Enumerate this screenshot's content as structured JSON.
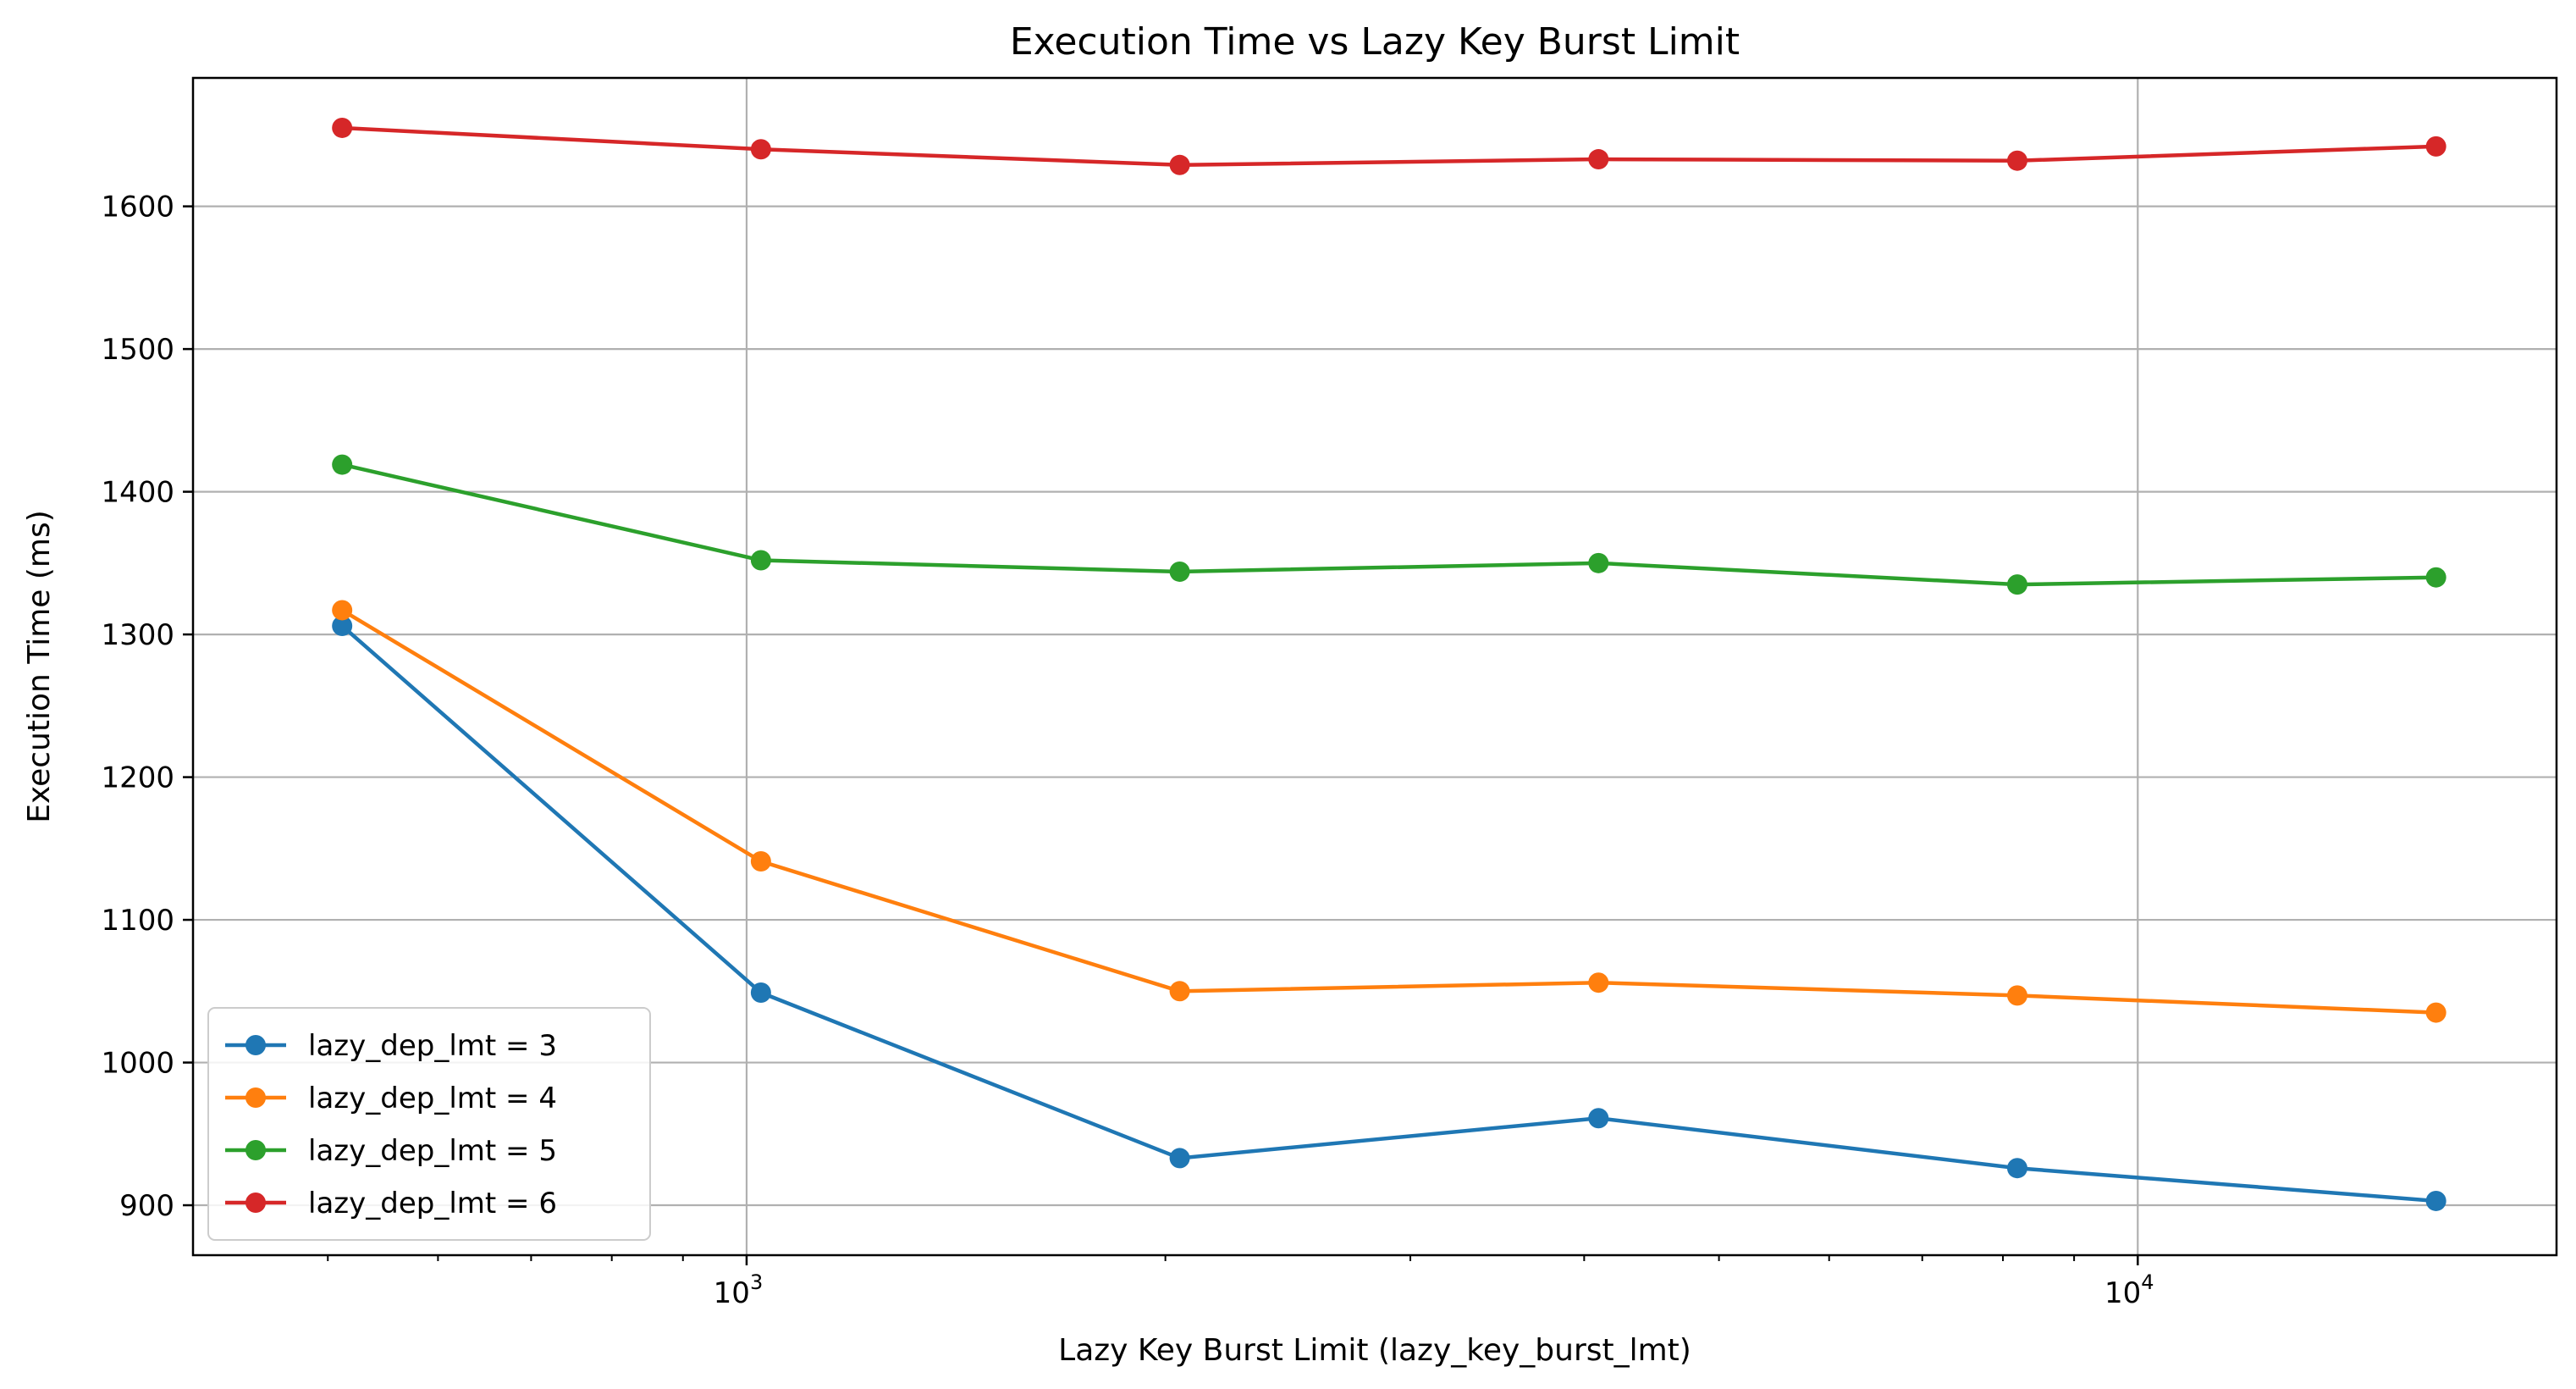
{
  "chart_data": {
    "type": "line",
    "title": "Execution Time vs Lazy Key Burst Limit",
    "xlabel": "Lazy Key Burst Limit (lazy_key_burst_lmt)",
    "ylabel": "Execution Time (ms)",
    "x_scale": "log",
    "x": [
      512,
      1024,
      2048,
      4096,
      8192,
      16384
    ],
    "x_major_ticks": [
      {
        "value": 1000,
        "label_base": "10",
        "label_exp": "3"
      },
      {
        "value": 10000,
        "label_base": "10",
        "label_exp": "4"
      }
    ],
    "xlim": [
      400,
      20000
    ],
    "ylim": [
      865,
      1690
    ],
    "y_ticks": [
      900,
      1000,
      1100,
      1200,
      1300,
      1400,
      1500,
      1600
    ],
    "grid": true,
    "legend_position": "lower-left",
    "series": [
      {
        "name": "lazy_dep_lmt = 3",
        "color": "#1f77b4",
        "values": [
          1306,
          1049,
          933,
          961,
          926,
          903
        ]
      },
      {
        "name": "lazy_dep_lmt = 4",
        "color": "#ff7f0e",
        "values": [
          1317,
          1141,
          1050,
          1056,
          1047,
          1035
        ]
      },
      {
        "name": "lazy_dep_lmt = 5",
        "color": "#2ca02c",
        "values": [
          1419,
          1352,
          1344,
          1350,
          1335,
          1340
        ]
      },
      {
        "name": "lazy_dep_lmt = 6",
        "color": "#d62728",
        "values": [
          1655,
          1640,
          1629,
          1633,
          1632,
          1642
        ]
      }
    ]
  }
}
